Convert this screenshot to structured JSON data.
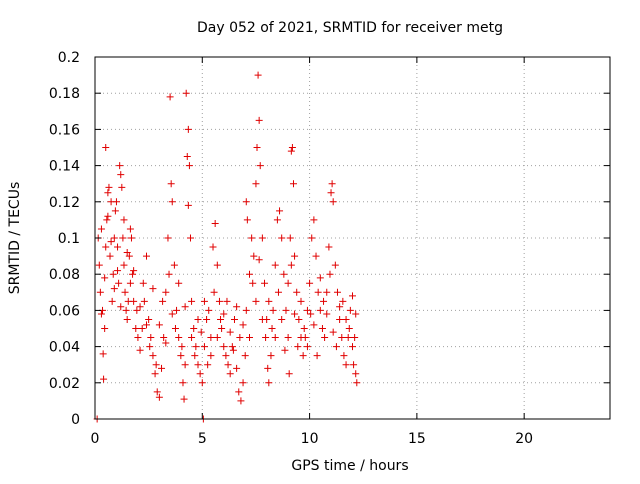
{
  "chart_data": {
    "type": "scatter",
    "title": "Day 052 of 2021, SRMTID for receiver metg",
    "xlabel": "GPS time / hours",
    "ylabel": "SRMTID / TECUs",
    "xlim": [
      0,
      24
    ],
    "ylim": [
      0,
      0.2
    ],
    "xticks": [
      0,
      5,
      10,
      15,
      20
    ],
    "xtick_labels": [
      "0",
      "5",
      "10",
      "15",
      "20"
    ],
    "yticks": [
      0,
      0.02,
      0.04,
      0.06,
      0.08,
      0.1,
      0.12,
      0.14,
      0.16,
      0.18,
      0.2
    ],
    "ytick_labels": [
      "0",
      "0.02",
      "0.04",
      "0.06",
      "0.08",
      "0.1",
      "0.12",
      "0.14",
      "0.16",
      "0.18",
      "0.2"
    ],
    "grid": true,
    "legend": "none",
    "marker": "+",
    "series": [
      {
        "name": "SRMTID",
        "color": "#e00000",
        "points": [
          [
            0.1,
            0.0
          ],
          [
            5.05,
            0.0
          ],
          [
            0.15,
            0.1
          ],
          [
            0.2,
            0.085
          ],
          [
            0.25,
            0.07
          ],
          [
            0.3,
            0.058
          ],
          [
            0.35,
            0.06
          ],
          [
            0.38,
            0.036
          ],
          [
            0.4,
            0.022
          ],
          [
            0.45,
            0.05
          ],
          [
            0.5,
            0.095
          ],
          [
            0.5,
            0.15
          ],
          [
            0.55,
            0.11
          ],
          [
            0.6,
            0.125
          ],
          [
            0.65,
            0.128
          ],
          [
            0.7,
            0.09
          ],
          [
            0.75,
            0.12
          ],
          [
            0.8,
            0.065
          ],
          [
            0.85,
            0.08
          ],
          [
            0.9,
            0.1
          ],
          [
            0.95,
            0.115
          ],
          [
            1.0,
            0.12
          ],
          [
            1.05,
            0.095
          ],
          [
            1.1,
            0.075
          ],
          [
            1.15,
            0.14
          ],
          [
            1.2,
            0.135
          ],
          [
            1.25,
            0.128
          ],
          [
            1.3,
            0.1
          ],
          [
            1.35,
            0.085
          ],
          [
            1.4,
            0.07
          ],
          [
            1.45,
            0.06
          ],
          [
            1.5,
            0.055
          ],
          [
            1.55,
            0.065
          ],
          [
            1.6,
            0.09
          ],
          [
            1.65,
            0.105
          ],
          [
            1.7,
            0.1
          ],
          [
            1.75,
            0.08
          ],
          [
            1.8,
            0.065
          ],
          [
            1.9,
            0.05
          ],
          [
            2.0,
            0.045
          ],
          [
            2.1,
            0.038
          ],
          [
            2.2,
            0.05
          ],
          [
            2.3,
            0.065
          ],
          [
            2.4,
            0.09
          ],
          [
            2.5,
            0.055
          ],
          [
            2.6,
            0.045
          ],
          [
            2.7,
            0.035
          ],
          [
            2.8,
            0.025
          ],
          [
            2.9,
            0.015
          ],
          [
            3.0,
            0.012
          ],
          [
            3.1,
            0.028
          ],
          [
            3.2,
            0.045
          ],
          [
            3.3,
            0.07
          ],
          [
            3.4,
            0.1
          ],
          [
            3.5,
            0.178
          ],
          [
            3.55,
            0.13
          ],
          [
            3.6,
            0.12
          ],
          [
            3.7,
            0.085
          ],
          [
            3.8,
            0.06
          ],
          [
            3.9,
            0.045
          ],
          [
            4.0,
            0.035
          ],
          [
            4.1,
            0.02
          ],
          [
            4.15,
            0.011
          ],
          [
            4.2,
            0.03
          ],
          [
            4.25,
            0.18
          ],
          [
            4.3,
            0.145
          ],
          [
            4.35,
            0.16
          ],
          [
            4.4,
            0.14
          ],
          [
            4.45,
            0.1
          ],
          [
            4.5,
            0.065
          ],
          [
            4.6,
            0.05
          ],
          [
            4.7,
            0.04
          ],
          [
            4.8,
            0.03
          ],
          [
            4.9,
            0.025
          ],
          [
            5.0,
            0.02
          ],
          [
            5.1,
            0.04
          ],
          [
            5.2,
            0.055
          ],
          [
            5.3,
            0.06
          ],
          [
            5.4,
            0.045
          ],
          [
            5.5,
            0.095
          ],
          [
            5.6,
            0.108
          ],
          [
            5.7,
            0.085
          ],
          [
            5.8,
            0.065
          ],
          [
            5.9,
            0.05
          ],
          [
            6.0,
            0.04
          ],
          [
            6.1,
            0.035
          ],
          [
            6.2,
            0.03
          ],
          [
            6.3,
            0.025
          ],
          [
            6.4,
            0.04
          ],
          [
            6.5,
            0.055
          ],
          [
            6.6,
            0.028
          ],
          [
            6.7,
            0.015
          ],
          [
            6.8,
            0.01
          ],
          [
            6.9,
            0.02
          ],
          [
            7.0,
            0.035
          ],
          [
            7.05,
            0.12
          ],
          [
            7.1,
            0.11
          ],
          [
            7.2,
            0.08
          ],
          [
            7.3,
            0.1
          ],
          [
            7.4,
            0.09
          ],
          [
            7.5,
            0.13
          ],
          [
            7.55,
            0.15
          ],
          [
            7.6,
            0.19
          ],
          [
            7.65,
            0.165
          ],
          [
            7.7,
            0.14
          ],
          [
            7.8,
            0.1
          ],
          [
            7.9,
            0.075
          ],
          [
            8.0,
            0.055
          ],
          [
            8.05,
            0.028
          ],
          [
            8.1,
            0.02
          ],
          [
            8.2,
            0.035
          ],
          [
            8.3,
            0.06
          ],
          [
            8.4,
            0.085
          ],
          [
            8.5,
            0.11
          ],
          [
            8.6,
            0.115
          ],
          [
            8.7,
            0.1
          ],
          [
            8.8,
            0.08
          ],
          [
            8.9,
            0.06
          ],
          [
            9.0,
            0.045
          ],
          [
            9.05,
            0.025
          ],
          [
            9.1,
            0.1
          ],
          [
            9.15,
            0.148
          ],
          [
            9.2,
            0.15
          ],
          [
            9.25,
            0.13
          ],
          [
            9.3,
            0.09
          ],
          [
            9.4,
            0.07
          ],
          [
            9.5,
            0.055
          ],
          [
            9.6,
            0.045
          ],
          [
            9.7,
            0.035
          ],
          [
            9.8,
            0.045
          ],
          [
            9.9,
            0.06
          ],
          [
            10.0,
            0.075
          ],
          [
            10.1,
            0.1
          ],
          [
            10.2,
            0.11
          ],
          [
            10.3,
            0.09
          ],
          [
            10.4,
            0.07
          ],
          [
            10.5,
            0.06
          ],
          [
            10.6,
            0.05
          ],
          [
            10.7,
            0.045
          ],
          [
            10.8,
            0.07
          ],
          [
            10.9,
            0.095
          ],
          [
            11.0,
            0.125
          ],
          [
            11.05,
            0.13
          ],
          [
            11.1,
            0.12
          ],
          [
            11.2,
            0.085
          ],
          [
            11.3,
            0.07
          ],
          [
            11.4,
            0.055
          ],
          [
            11.5,
            0.045
          ],
          [
            11.6,
            0.035
          ],
          [
            11.7,
            0.03
          ],
          [
            11.8,
            0.045
          ],
          [
            11.9,
            0.06
          ],
          [
            12.0,
            0.068
          ],
          [
            12.05,
            0.03
          ],
          [
            12.1,
            0.045
          ],
          [
            12.15,
            0.025
          ],
          [
            12.2,
            0.02
          ],
          [
            0.3,
            0.105
          ],
          [
            0.6,
            0.112
          ],
          [
            0.9,
            0.072
          ],
          [
            1.2,
            0.062
          ],
          [
            1.5,
            0.092
          ],
          [
            1.8,
            0.082
          ],
          [
            2.1,
            0.062
          ],
          [
            2.4,
            0.052
          ],
          [
            2.7,
            0.072
          ],
          [
            3.0,
            0.052
          ],
          [
            3.3,
            0.042
          ],
          [
            3.6,
            0.058
          ],
          [
            3.9,
            0.075
          ],
          [
            4.2,
            0.062
          ],
          [
            4.5,
            0.045
          ],
          [
            4.8,
            0.055
          ],
          [
            5.1,
            0.065
          ],
          [
            5.4,
            0.035
          ],
          [
            5.7,
            0.045
          ],
          [
            6.0,
            0.058
          ],
          [
            6.3,
            0.048
          ],
          [
            6.6,
            0.062
          ],
          [
            6.9,
            0.052
          ],
          [
            7.2,
            0.045
          ],
          [
            7.5,
            0.065
          ],
          [
            7.8,
            0.055
          ],
          [
            8.1,
            0.065
          ],
          [
            8.4,
            0.045
          ],
          [
            8.7,
            0.055
          ],
          [
            9.0,
            0.075
          ],
          [
            9.3,
            0.058
          ],
          [
            9.6,
            0.065
          ],
          [
            9.9,
            0.04
          ],
          [
            10.2,
            0.052
          ],
          [
            10.5,
            0.078
          ],
          [
            10.8,
            0.058
          ],
          [
            11.1,
            0.048
          ],
          [
            11.4,
            0.062
          ],
          [
            11.7,
            0.055
          ],
          [
            12.0,
            0.04
          ],
          [
            0.45,
            0.078
          ],
          [
            0.75,
            0.098
          ],
          [
            1.05,
            0.082
          ],
          [
            1.35,
            0.11
          ],
          [
            1.65,
            0.075
          ],
          [
            1.95,
            0.06
          ],
          [
            2.25,
            0.075
          ],
          [
            2.55,
            0.04
          ],
          [
            2.85,
            0.03
          ],
          [
            3.15,
            0.065
          ],
          [
            3.45,
            0.08
          ],
          [
            3.75,
            0.05
          ],
          [
            4.05,
            0.04
          ],
          [
            4.35,
            0.118
          ],
          [
            4.65,
            0.035
          ],
          [
            4.95,
            0.048
          ],
          [
            5.25,
            0.03
          ],
          [
            5.55,
            0.07
          ],
          [
            5.85,
            0.055
          ],
          [
            6.15,
            0.065
          ],
          [
            6.45,
            0.038
          ],
          [
            6.75,
            0.045
          ],
          [
            7.05,
            0.06
          ],
          [
            7.35,
            0.075
          ],
          [
            7.65,
            0.088
          ],
          [
            7.95,
            0.045
          ],
          [
            8.25,
            0.05
          ],
          [
            8.55,
            0.07
          ],
          [
            8.85,
            0.038
          ],
          [
            9.15,
            0.085
          ],
          [
            9.45,
            0.04
          ],
          [
            9.75,
            0.05
          ],
          [
            10.05,
            0.058
          ],
          [
            10.35,
            0.035
          ],
          [
            10.65,
            0.065
          ],
          [
            10.95,
            0.08
          ],
          [
            11.25,
            0.04
          ],
          [
            11.55,
            0.065
          ],
          [
            11.85,
            0.05
          ],
          [
            12.15,
            0.058
          ]
        ]
      }
    ]
  }
}
